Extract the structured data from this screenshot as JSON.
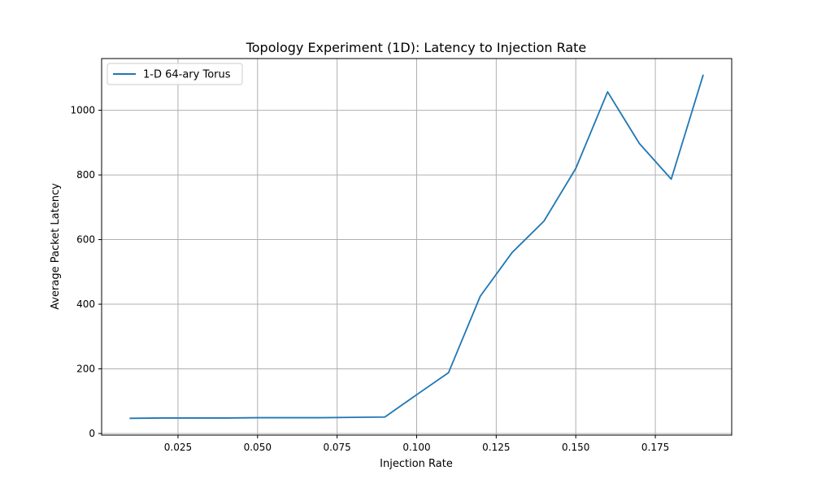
{
  "chart_data": {
    "type": "line",
    "title": "Topology Experiment (1D): Latency to Injection Rate",
    "xlabel": "Injection Rate",
    "ylabel": "Average Packet Latency",
    "xlim": [
      0.001,
      0.199
    ],
    "ylim": [
      -5,
      1160
    ],
    "xticks": [
      0.025,
      0.05,
      0.075,
      0.1,
      0.125,
      0.15,
      0.175
    ],
    "xtick_labels": [
      "0.025",
      "0.050",
      "0.075",
      "0.100",
      "0.125",
      "0.150",
      "0.175"
    ],
    "yticks": [
      0,
      200,
      400,
      600,
      800,
      1000
    ],
    "ytick_labels": [
      "0",
      "200",
      "400",
      "600",
      "800",
      "1000"
    ],
    "grid": true,
    "legend_position": "top-left",
    "series": [
      {
        "name": "1-D 64-ary Torus",
        "color": "#1f77b4",
        "x": [
          0.01,
          0.02,
          0.03,
          0.04,
          0.05,
          0.06,
          0.07,
          0.08,
          0.09,
          0.1,
          0.11,
          0.12,
          0.13,
          0.14,
          0.15,
          0.16,
          0.17,
          0.18,
          0.19
        ],
        "y": [
          47,
          48,
          48,
          48,
          49,
          49,
          49,
          50,
          51,
          120,
          188,
          425,
          560,
          657,
          820,
          1057,
          897,
          787,
          1108
        ]
      }
    ]
  }
}
